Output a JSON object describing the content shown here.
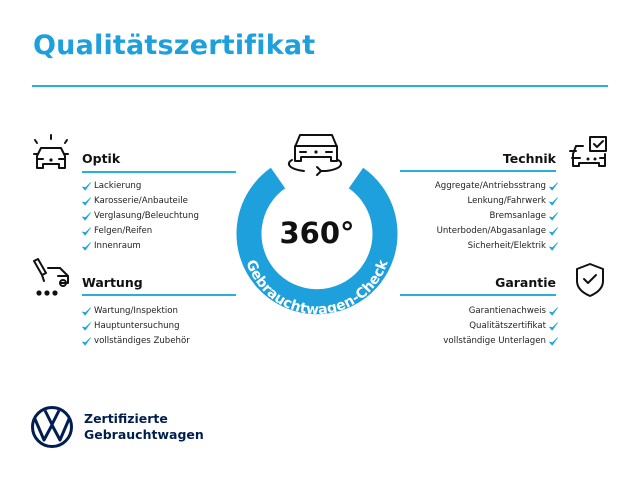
{
  "title": "Qualitätszertifikat",
  "badge": {
    "degrees": "360°",
    "ring_text": "Gebrauchtwagen-Check",
    "color": "#1ea0dc"
  },
  "sections": {
    "optik": {
      "heading": "Optik",
      "icon": "car-lights-icon",
      "items": [
        "Lackierung",
        "Karosserie/Anbauteile",
        "Verglasung/Beleuchtung",
        "Felgen/Reifen",
        "Innenraum"
      ]
    },
    "wartung": {
      "heading": "Wartung",
      "icon": "service-car-icon",
      "items": [
        "Wartung/Inspektion",
        "Hauptuntersuchung",
        "vollständiges Zubehör"
      ]
    },
    "technik": {
      "heading": "Technik",
      "icon": "car-checklist-icon",
      "items": [
        "Aggregate/Antriebsstrang",
        "Lenkung/Fahrwerk",
        "Bremsanlage",
        "Unterboden/Abgasanlage",
        "Sicherheit/Elektrik"
      ]
    },
    "garantie": {
      "heading": "Garantie",
      "icon": "shield-check-icon",
      "items": [
        "Garantienachweis",
        "Qualitätszertifikat",
        "vollständige Unterlagen"
      ]
    }
  },
  "footer": {
    "line1": "Zertifizierte",
    "line2": "Gebrauchtwagen",
    "logo": "vw-logo"
  },
  "colors": {
    "accent": "#1ea0dc",
    "navy": "#001e50",
    "check": "#1aa3dc"
  }
}
